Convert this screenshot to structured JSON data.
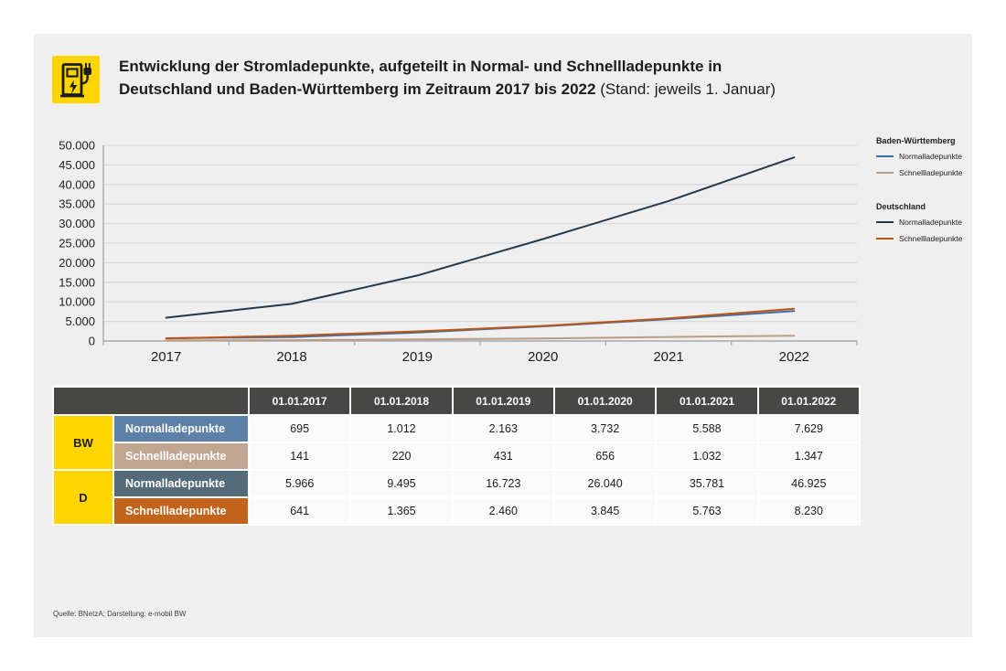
{
  "header": {
    "title_line1": "Entwicklung der Stromladepunkte, aufgeteilt in Normal- und Schnellladepunkte in",
    "title_line2": "Deutschland und Baden-Württemberg im Zeitraum 2017 bis 2022",
    "title_suffix": "(Stand: jeweils 1. Januar)",
    "icon": "ev-charging-station-icon"
  },
  "chart_data": {
    "type": "line",
    "x": [
      "2017",
      "2018",
      "2019",
      "2020",
      "2021",
      "2022"
    ],
    "series": [
      {
        "name": "Baden-Württemberg Normalladepunkte",
        "color": "#3d6fa8",
        "values": [
          695,
          1012,
          2163,
          3732,
          5588,
          7629
        ]
      },
      {
        "name": "Baden-Württemberg Schnellladepunkte",
        "color": "#bb9d85",
        "values": [
          141,
          220,
          431,
          656,
          1032,
          1347
        ]
      },
      {
        "name": "Deutschland Normalladepunkte",
        "color": "#24394a",
        "values": [
          5966,
          9495,
          16723,
          26040,
          35781,
          46925
        ]
      },
      {
        "name": "Deutschland Schnellladepunkte",
        "color": "#bc5614",
        "values": [
          641,
          1365,
          2460,
          3845,
          5763,
          8230
        ]
      }
    ],
    "draw_order": [
      1,
      0,
      2,
      3
    ],
    "ylim": [
      0,
      50000
    ],
    "y_tick_labels": [
      "0",
      "5.000",
      "10.000",
      "15.000",
      "20.000",
      "25.000",
      "30.000",
      "35.000",
      "40.000",
      "45.000",
      "50.000"
    ],
    "grid": true,
    "legend_position": "right"
  },
  "legend": {
    "groups": [
      {
        "title": "Baden-Württemberg",
        "items": [
          {
            "label": "Normalladepunkte",
            "color": "#3d6fa8"
          },
          {
            "label": "Schnellladepunkte",
            "color": "#bb9d85"
          }
        ]
      },
      {
        "title": "Deutschland",
        "items": [
          {
            "label": "Normalladepunkte",
            "color": "#24394a"
          },
          {
            "label": "Schnellladepunkte",
            "color": "#bc5614"
          }
        ]
      }
    ]
  },
  "table": {
    "col_headers": [
      "01.01.2017",
      "01.01.2018",
      "01.01.2019",
      "01.01.2020",
      "01.01.2021",
      "01.01.2022"
    ],
    "row_groups": [
      {
        "region": "BW",
        "rows": [
          {
            "label": "Normalladepunkte",
            "color": "#5c80a8",
            "values": [
              "695",
              "1.012",
              "2.163",
              "3.732",
              "5.588",
              "7.629"
            ]
          },
          {
            "label": "Schnellladepunkte",
            "color": "#c0a690",
            "values": [
              "141",
              "220",
              "431",
              "656",
              "1.032",
              "1.347"
            ]
          }
        ]
      },
      {
        "region": "D",
        "rows": [
          {
            "label": "Normalladepunkte",
            "color": "#546b7a",
            "values": [
              "5.966",
              "9.495",
              "16.723",
              "26.040",
              "35.781",
              "46.925"
            ]
          },
          {
            "label": "Schnellladepunkte",
            "color": "#c2641c",
            "values": [
              "641",
              "1.365",
              "2.460",
              "3.845",
              "5.763",
              "8.230"
            ]
          }
        ]
      }
    ]
  },
  "footer": {
    "source": "Quelle: BNetzA; Darstellung: e-mobil BW"
  },
  "colors": {
    "accent_yellow": "#ffd500",
    "table_header": "#474746",
    "card_bg": "#efefef",
    "grid": "#d9d9d9",
    "axis": "#a9a9a9"
  }
}
